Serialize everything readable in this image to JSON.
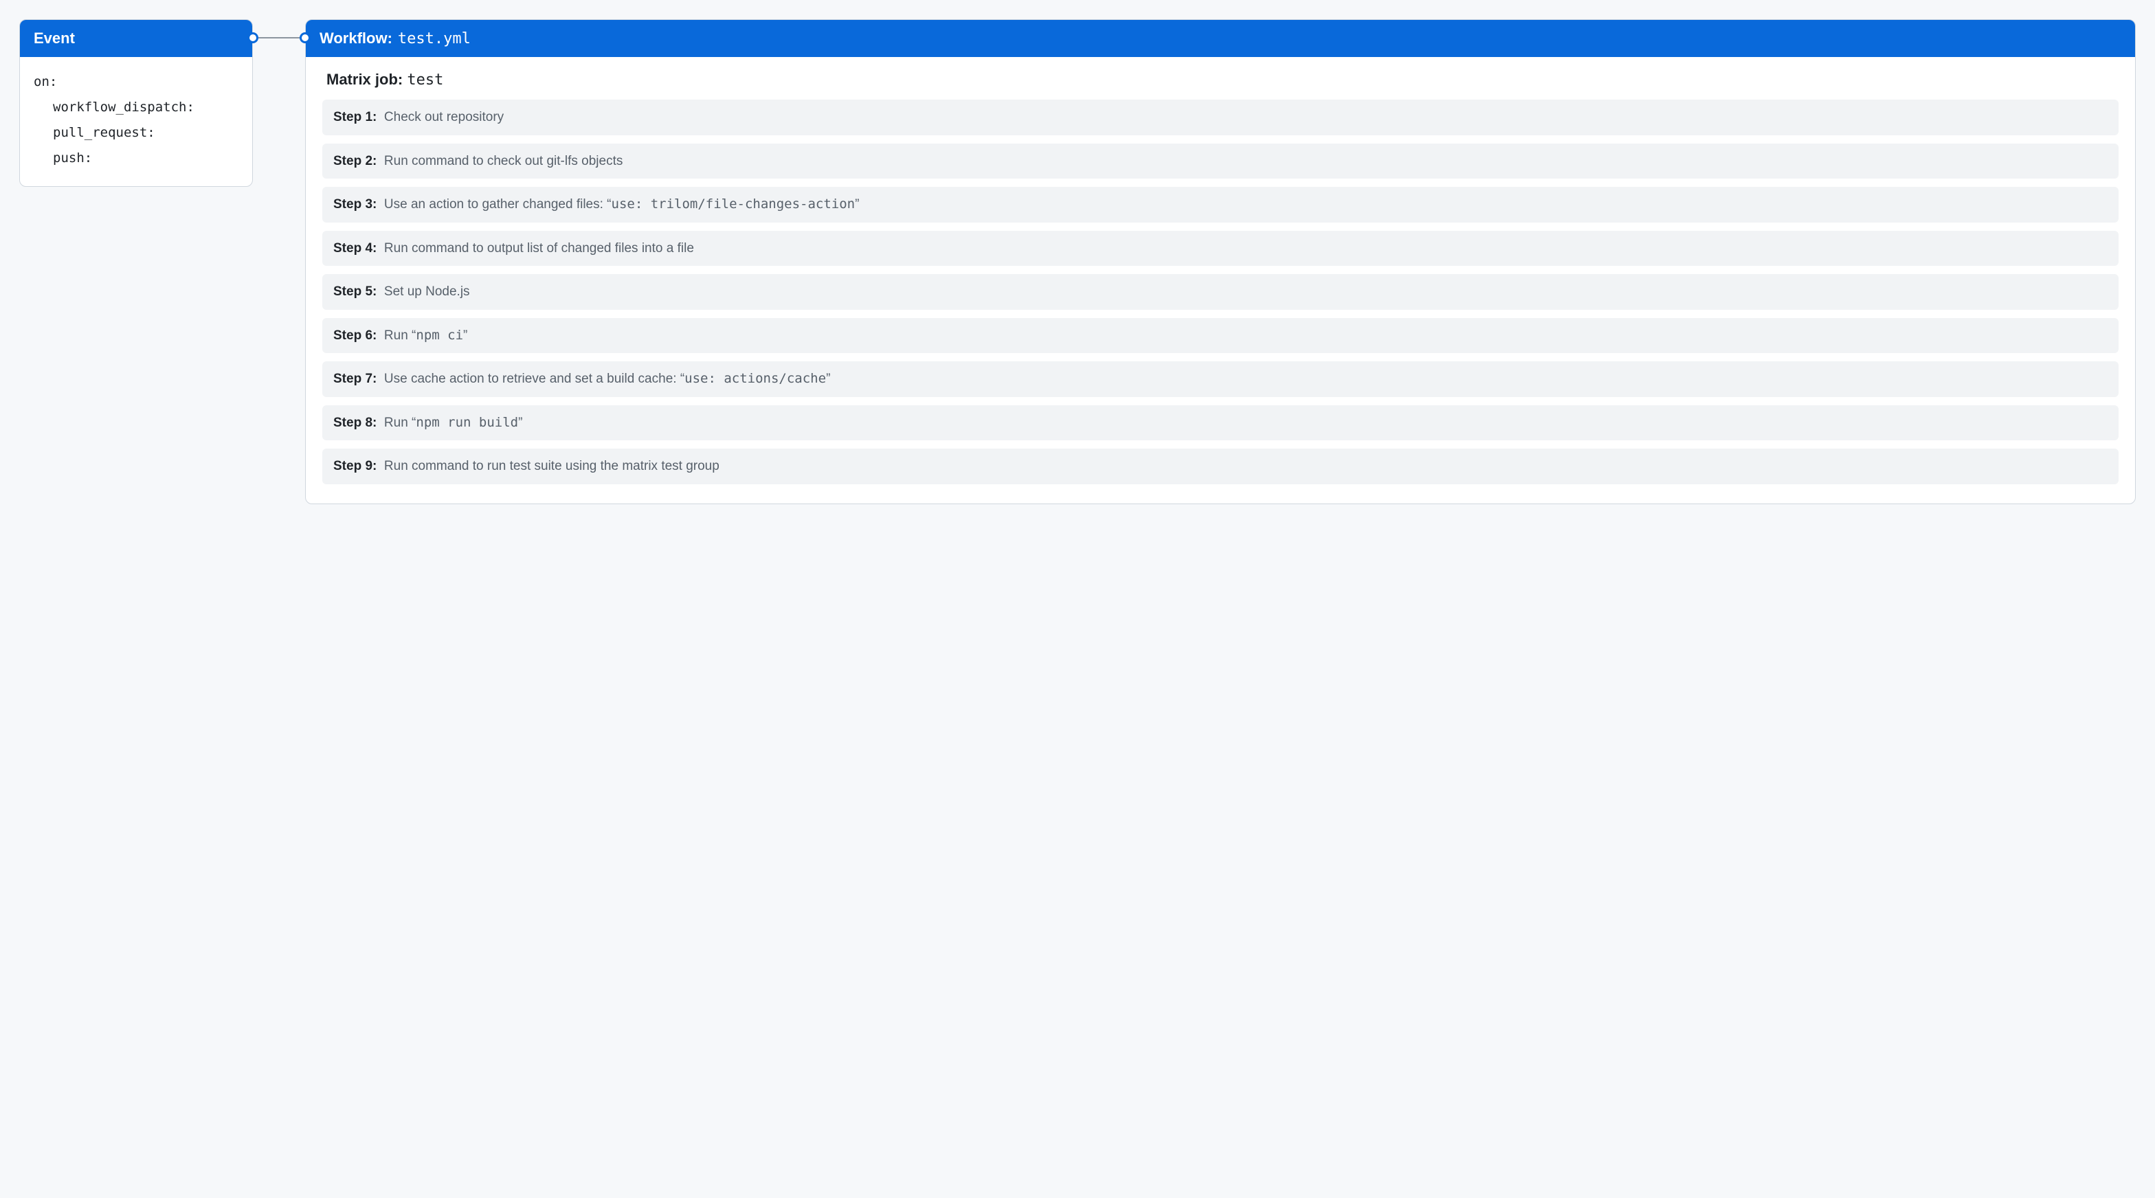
{
  "colors": {
    "header_bg": "#0969da",
    "header_text": "#ffffff",
    "page_bg": "#f6f8fa",
    "card_bg": "#ffffff",
    "card_border": "#d0d7de",
    "step_bg": "#f1f3f5",
    "text_primary": "#1f2328",
    "text_secondary": "#57606a",
    "connector_line": "#8c959f"
  },
  "event": {
    "title": "Event",
    "yaml_root": "on:",
    "triggers": [
      "workflow_dispatch:",
      "pull_request:",
      "push:"
    ]
  },
  "workflow": {
    "title_label": "Workflow:",
    "filename": "test.yml",
    "matrix_label": "Matrix job:",
    "matrix_name": "test",
    "steps": [
      {
        "label": "Step 1:",
        "desc_pre": "Check out repository",
        "code": "",
        "desc_post": ""
      },
      {
        "label": "Step 2:",
        "desc_pre": "Run command to check out git-lfs objects",
        "code": "",
        "desc_post": ""
      },
      {
        "label": "Step 3:",
        "desc_pre": "Use an action to gather changed files: “",
        "code": "use: trilom/file-changes-action",
        "desc_post": "”"
      },
      {
        "label": "Step 4:",
        "desc_pre": "Run command to output list of changed files into a file",
        "code": "",
        "desc_post": ""
      },
      {
        "label": "Step 5:",
        "desc_pre": "Set up Node.js",
        "code": "",
        "desc_post": ""
      },
      {
        "label": "Step 6:",
        "desc_pre": "Run “",
        "code": "npm ci",
        "desc_post": "”"
      },
      {
        "label": "Step 7:",
        "desc_pre": "Use cache action to retrieve and set a build cache: “",
        "code": "use: actions/cache",
        "desc_post": "”"
      },
      {
        "label": "Step 8:",
        "desc_pre": "Run “",
        "code": "npm run build",
        "desc_post": "”"
      },
      {
        "label": "Step 9:",
        "desc_pre": "Run command to run test suite using the matrix test group",
        "code": "",
        "desc_post": ""
      }
    ]
  }
}
